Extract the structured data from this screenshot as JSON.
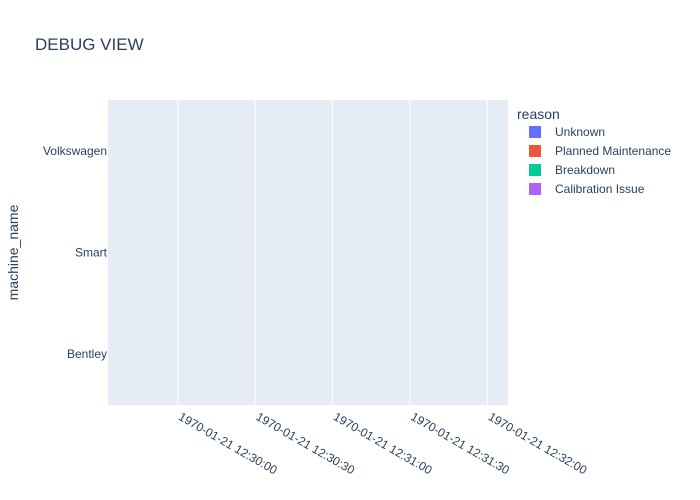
{
  "chart_data": {
    "type": "bar",
    "title": "DEBUG VIEW",
    "xlabel": "",
    "ylabel": "machine_name",
    "categories": [
      "Volkswagen",
      "Smart",
      "Bentley"
    ],
    "x_ticks": [
      "1970-01-21 12:30:00",
      "1970-01-21 12:30:30",
      "1970-01-21 12:31:00",
      "1970-01-21 12:31:30",
      "1970-01-21 12:32:00"
    ],
    "xlim": [
      "1970-01-21 12:29:33",
      "1970-01-21 12:32:08"
    ],
    "grid": true,
    "legend": {
      "title": "reason",
      "placement": "right",
      "items": [
        {
          "name": "Unknown",
          "color": "#636efa"
        },
        {
          "name": "Planned Maintenance",
          "color": "#EF553B"
        },
        {
          "name": "Breakdown",
          "color": "#00cc96"
        },
        {
          "name": "Calibration Issue",
          "color": "#ab63fa"
        }
      ]
    },
    "series": [],
    "colors": {
      "plot_bg": "#E5ECF6",
      "grid": "#ffffff",
      "text": "#2a3f5f"
    }
  }
}
